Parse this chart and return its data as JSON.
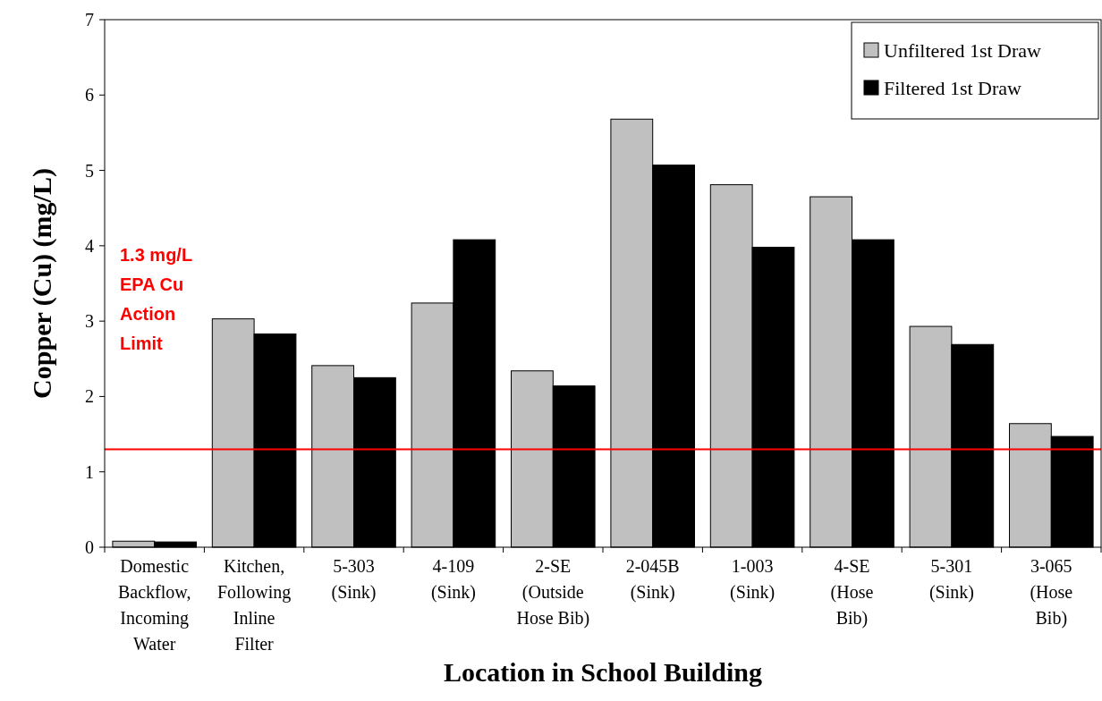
{
  "chart_data": {
    "type": "bar",
    "xlabel": "Location in School Building",
    "ylabel": "Copper (Cu) (mg/L)",
    "categories": [
      "Domestic\nBackflow,\nIncoming\nWater",
      "Kitchen,\nFollowing\nInline\nFilter",
      "5-303\n(Sink)",
      "4-109\n(Sink)",
      "2-SE\n(Outside\nHose Bib)",
      "2-045B\n(Sink)",
      "1-003\n(Sink)",
      "4-SE\n(Hose\nBib)",
      "5-301\n(Sink)",
      "3-065\n(Hose\nBib)"
    ],
    "series": [
      {
        "name": "Unfiltered 1st Draw",
        "color": "#c0c0c0",
        "values": [
          0.08,
          3.03,
          2.41,
          3.24,
          2.34,
          5.68,
          4.81,
          4.65,
          2.93,
          1.64
        ]
      },
      {
        "name": "Filtered 1st Draw",
        "color": "#000000",
        "values": [
          0.07,
          2.83,
          2.25,
          4.08,
          2.14,
          5.07,
          3.98,
          4.08,
          2.69,
          1.47
        ]
      }
    ],
    "ylim": [
      0,
      7
    ],
    "yticks": [
      0,
      1,
      2,
      3,
      4,
      5,
      6,
      7
    ],
    "grid": false,
    "legend": "top right",
    "ref_lines": [
      {
        "axis": "y",
        "value": 1.3,
        "label": "1.3 mg/L\nEPA Cu\nAction\nLimit",
        "color": "#ff0000",
        "line_style": "solid"
      }
    ]
  }
}
